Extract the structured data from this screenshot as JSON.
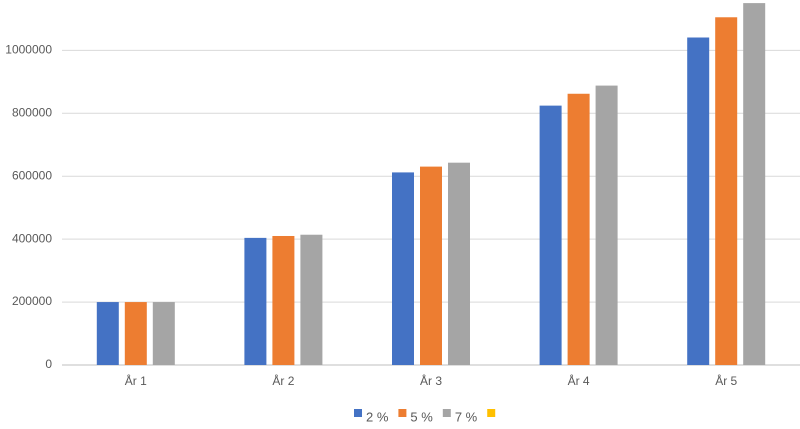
{
  "chart_data": {
    "type": "bar",
    "categories": [
      "År 1",
      "År 2",
      "År 3",
      "År 4",
      "År 5"
    ],
    "series": [
      {
        "name": "2 %",
        "color": "#4472c4",
        "values": [
          200000,
          404000,
          612080,
          824322,
          1040808
        ]
      },
      {
        "name": "5 %",
        "color": "#ed7d31",
        "values": [
          200000,
          410000,
          630500,
          862025,
          1105126
        ]
      },
      {
        "name": "7 %",
        "color": "#a5a5a5",
        "values": [
          200000,
          414000,
          642980,
          887989,
          1150148
        ]
      },
      {
        "name": null,
        "color": "#ffc000",
        "values": [
          null,
          null,
          null,
          null,
          null
        ]
      }
    ],
    "ylim": [
      0,
      1160000
    ],
    "yticks": [
      0,
      200000,
      400000,
      600000,
      800000,
      1000000
    ],
    "grid": true,
    "legend": "bottom"
  }
}
